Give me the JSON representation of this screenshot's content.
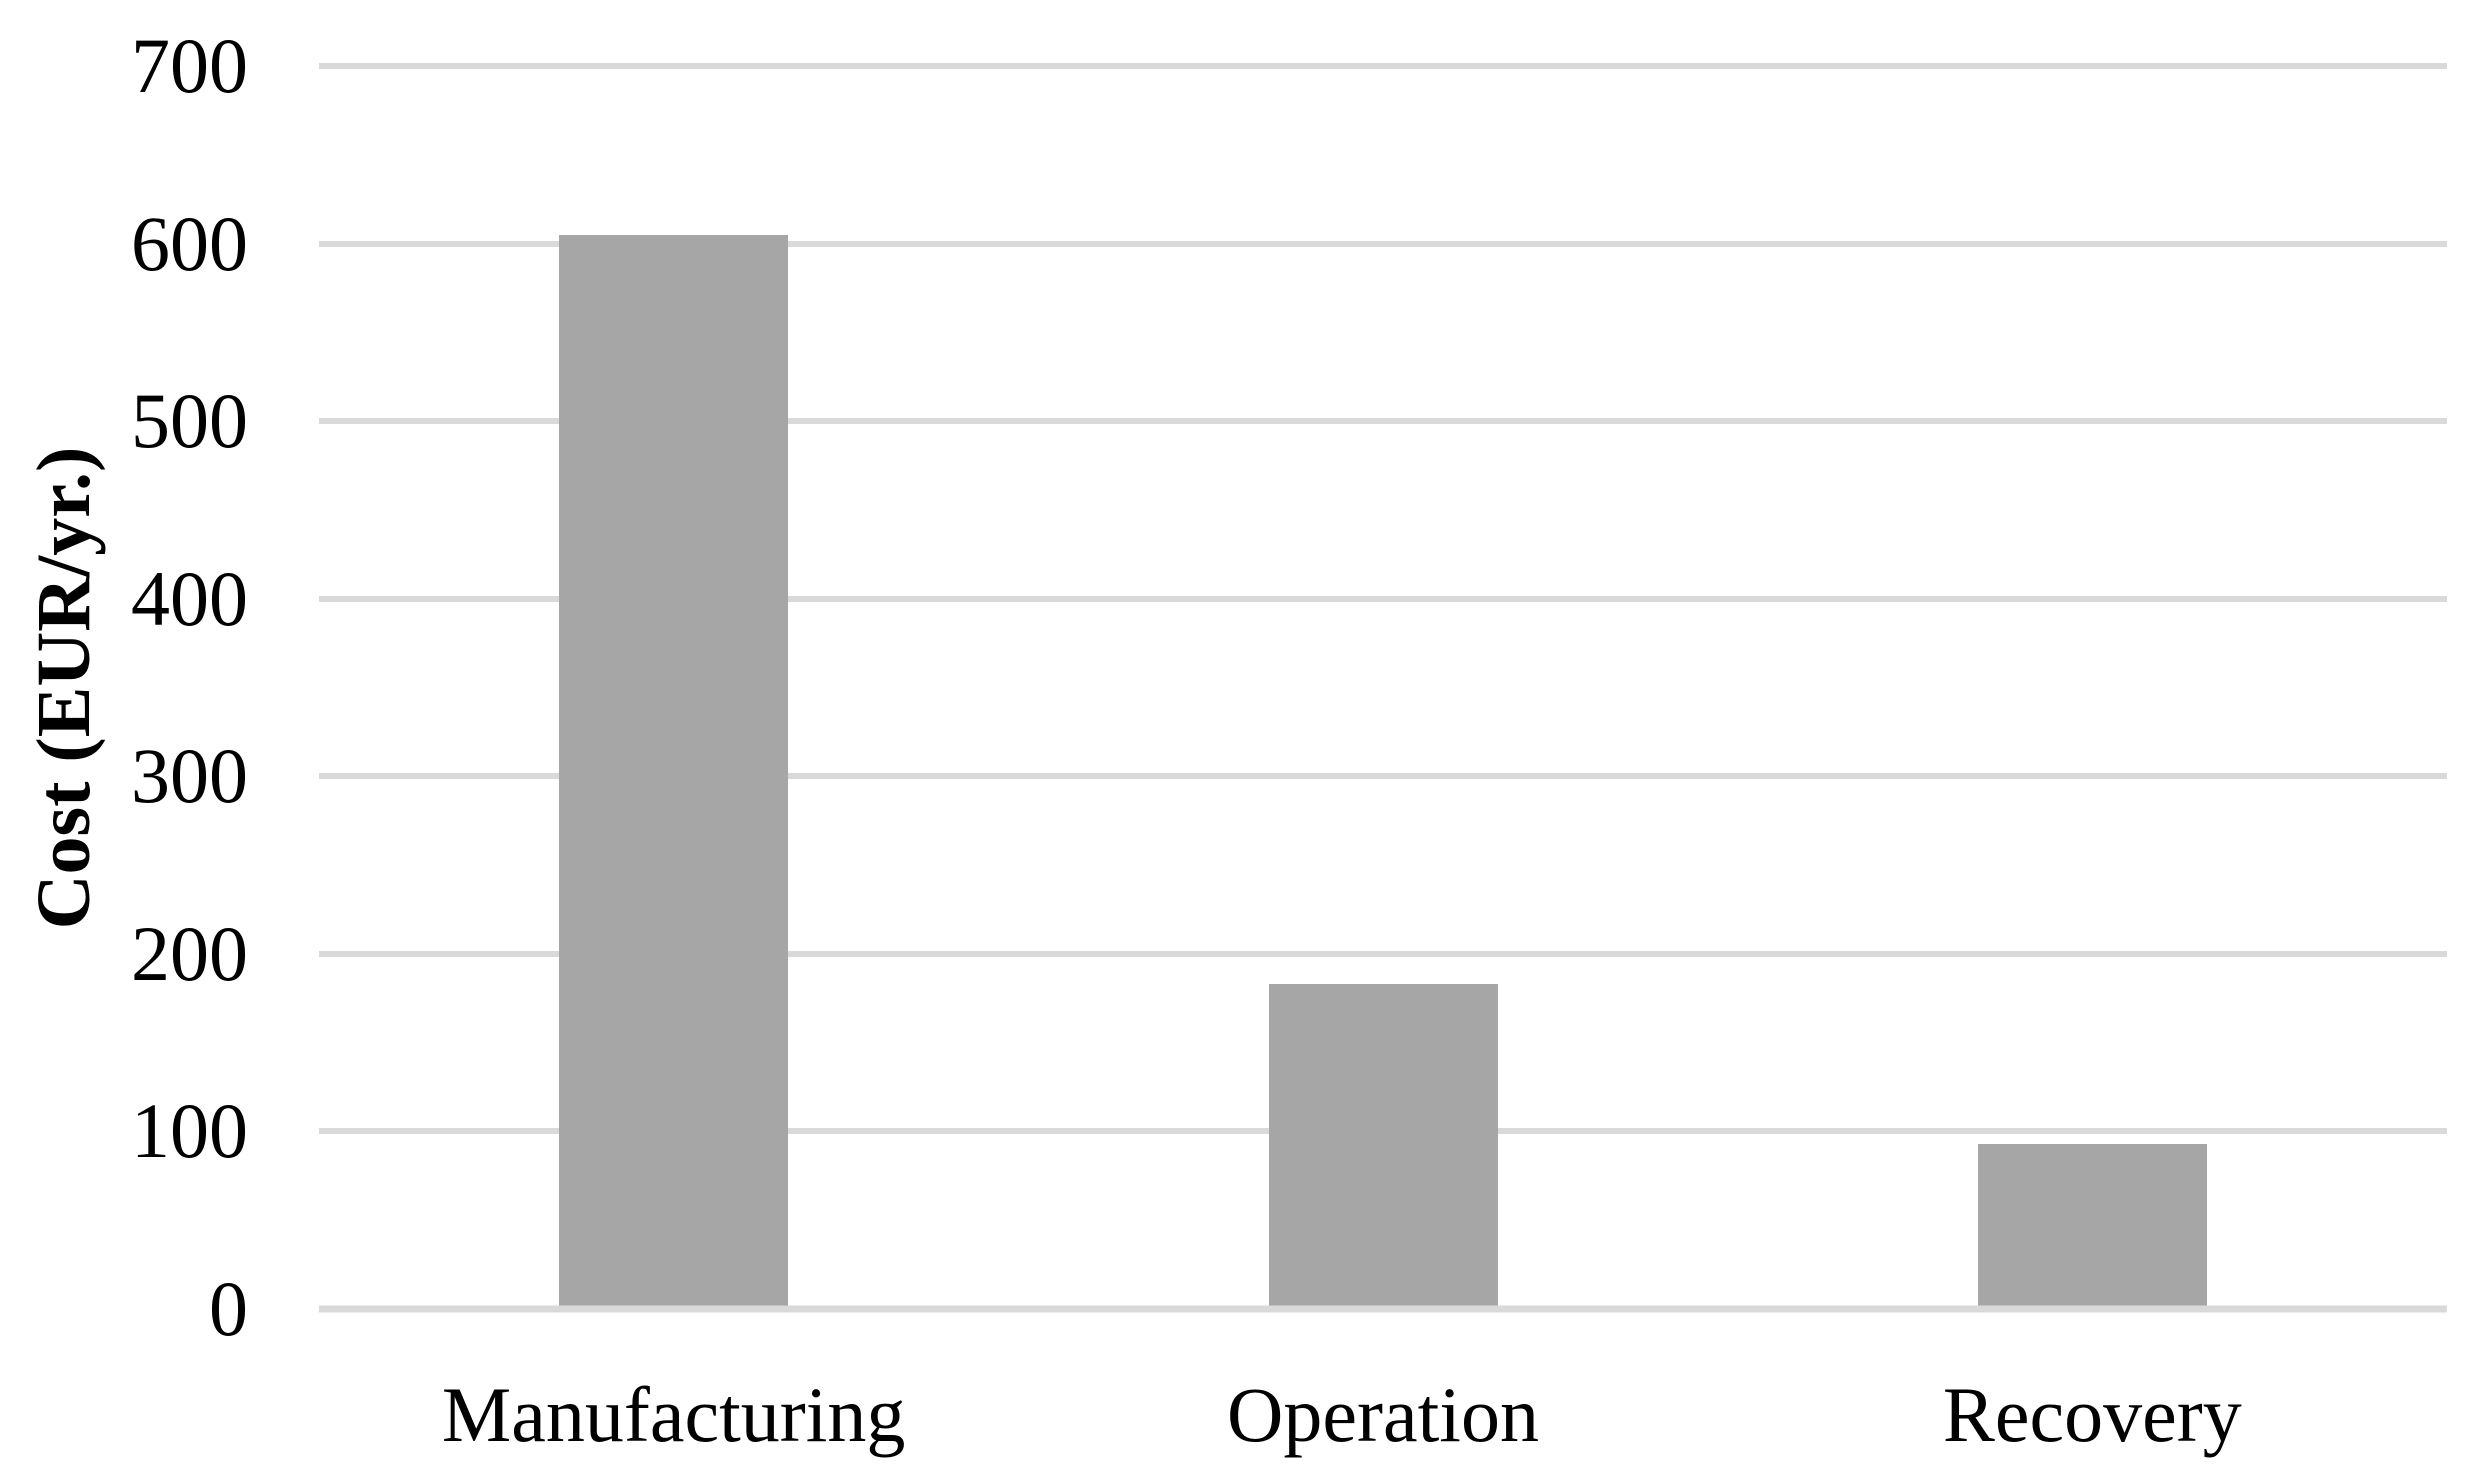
{
  "chart_data": {
    "type": "bar",
    "title": "",
    "categories": [
      "Manufacturing",
      "Operation",
      "Recovery"
    ],
    "values": [
      605,
      183,
      93
    ],
    "xlabel": "",
    "ylabel": "Cost (EUR/yr.)",
    "ylim": [
      0,
      700
    ],
    "yticks": [
      0,
      100,
      200,
      300,
      400,
      500,
      600,
      700
    ],
    "grid": "horizontal",
    "legend": "none",
    "colors": {
      "bar": "#a6a6a6",
      "gridline": "#d9d9d9",
      "axis_text": "#000000",
      "background": "#ffffff"
    }
  }
}
